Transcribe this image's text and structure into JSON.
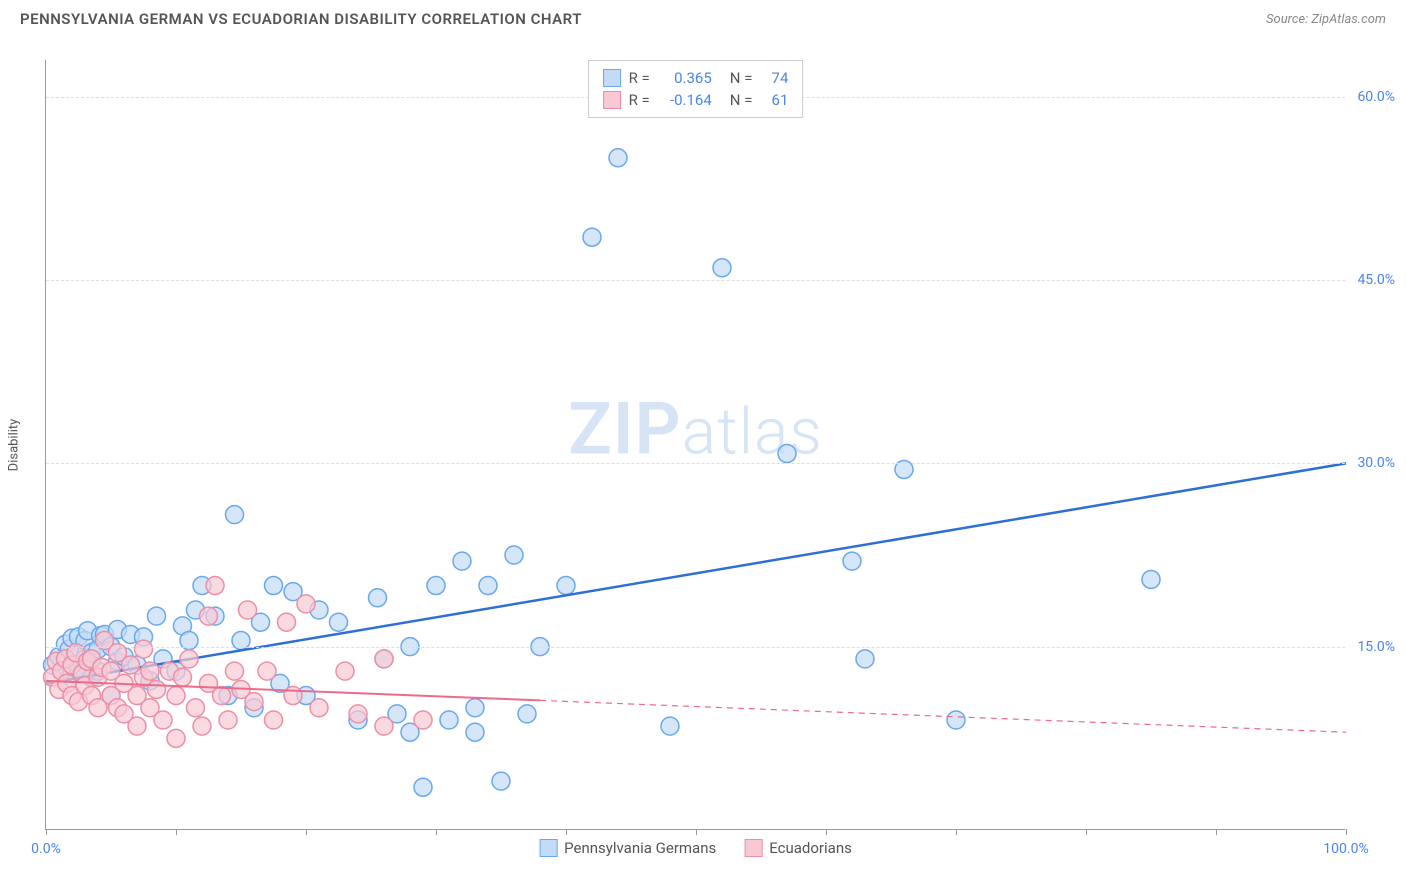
{
  "header": {
    "title": "PENNSYLVANIA GERMAN VS ECUADORIAN DISABILITY CORRELATION CHART",
    "source": "Source: ZipAtlas.com"
  },
  "watermark": {
    "zip": "ZIP",
    "atlas": "atlas"
  },
  "chart": {
    "type": "scatter",
    "y_axis_label": "Disability",
    "xlim": [
      0,
      100
    ],
    "ylim": [
      0,
      63
    ],
    "x_ticks": [
      0,
      10,
      20,
      30,
      40,
      50,
      60,
      70,
      80,
      90,
      100
    ],
    "x_tick_labels": {
      "0": "0.0%",
      "100": "100.0%"
    },
    "y_gridlines": [
      15,
      30,
      45,
      60
    ],
    "y_tick_labels": {
      "15": "15.0%",
      "30": "30.0%",
      "45": "45.0%",
      "60": "60.0%"
    },
    "background_color": "#ffffff",
    "grid_color": "#dddddd",
    "axis_color": "#999999",
    "tick_label_color": "#4a86e8",
    "marker_radius": 9,
    "marker_stroke_width": 1.5,
    "series": [
      {
        "name": "Pennsylvania Germans",
        "marker_fill": "#c3dbf7",
        "marker_stroke": "#6aa8ec",
        "marker_opacity": 0.7,
        "trend_color": "#2e6fd6",
        "trend_width": 2.5,
        "trend_solid_until_x": 100,
        "trend": {
          "y_at_x0": 12.0,
          "y_at_x100": 30.0
        },
        "R": "0.365",
        "N": "74",
        "points": [
          [
            0.5,
            13.5
          ],
          [
            1,
            14.2
          ],
          [
            1.2,
            13
          ],
          [
            1.5,
            15.2
          ],
          [
            1.8,
            14.8
          ],
          [
            2,
            12.8
          ],
          [
            2,
            15.7
          ],
          [
            2.5,
            13.2
          ],
          [
            2.5,
            15.8
          ],
          [
            3,
            14
          ],
          [
            3,
            15.5
          ],
          [
            3.2,
            16.3
          ],
          [
            3.5,
            12.5
          ],
          [
            3.5,
            14.5
          ],
          [
            4,
            14.8
          ],
          [
            4,
            13
          ],
          [
            4.2,
            15.9
          ],
          [
            4.5,
            16
          ],
          [
            5,
            11
          ],
          [
            5,
            15
          ],
          [
            5.5,
            13.8
          ],
          [
            5.5,
            16.4
          ],
          [
            6,
            14.2
          ],
          [
            6.5,
            16
          ],
          [
            7,
            13.5
          ],
          [
            7.5,
            15.8
          ],
          [
            8,
            12.2
          ],
          [
            8.5,
            17.5
          ],
          [
            9,
            14
          ],
          [
            10,
            13
          ],
          [
            10.5,
            16.7
          ],
          [
            11,
            15.5
          ],
          [
            11.5,
            18
          ],
          [
            12,
            20
          ],
          [
            13,
            17.5
          ],
          [
            14,
            11
          ],
          [
            14.5,
            25.8
          ],
          [
            15,
            15.5
          ],
          [
            16,
            10
          ],
          [
            16.5,
            17
          ],
          [
            17.5,
            20
          ],
          [
            18,
            12
          ],
          [
            19,
            19.5
          ],
          [
            20,
            11
          ],
          [
            21,
            18
          ],
          [
            22.5,
            17
          ],
          [
            24,
            9
          ],
          [
            25.5,
            19
          ],
          [
            26,
            14
          ],
          [
            27,
            9.5
          ],
          [
            28,
            8
          ],
          [
            28,
            15
          ],
          [
            29,
            3.5
          ],
          [
            30,
            20
          ],
          [
            31,
            9
          ],
          [
            32,
            22
          ],
          [
            33,
            10
          ],
          [
            33,
            8
          ],
          [
            34,
            20
          ],
          [
            35,
            4
          ],
          [
            36,
            22.5
          ],
          [
            37,
            9.5
          ],
          [
            38,
            15
          ],
          [
            40,
            20
          ],
          [
            42,
            48.5
          ],
          [
            44,
            55
          ],
          [
            48,
            8.5
          ],
          [
            52,
            46
          ],
          [
            57,
            30.8
          ],
          [
            62,
            22
          ],
          [
            63,
            14
          ],
          [
            66,
            29.5
          ],
          [
            70,
            9
          ],
          [
            85,
            20.5
          ]
        ]
      },
      {
        "name": "Ecuadorians",
        "marker_fill": "#f8c9d4",
        "marker_stroke": "#ec8fa6",
        "marker_opacity": 0.7,
        "trend_color": "#ec6a8a",
        "trend_width": 2,
        "trend_solid_until_x": 38,
        "trend": {
          "y_at_x0": 12.2,
          "y_at_x100": 8.0
        },
        "R": "-0.164",
        "N": "61",
        "points": [
          [
            0.5,
            12.5
          ],
          [
            0.8,
            13.8
          ],
          [
            1,
            11.5
          ],
          [
            1.2,
            13
          ],
          [
            1.5,
            14
          ],
          [
            1.6,
            12
          ],
          [
            2,
            11
          ],
          [
            2,
            13.5
          ],
          [
            2.3,
            14.5
          ],
          [
            2.5,
            10.5
          ],
          [
            2.8,
            12.8
          ],
          [
            3,
            11.8
          ],
          [
            3.2,
            13.8
          ],
          [
            3.5,
            11
          ],
          [
            3.5,
            14
          ],
          [
            4,
            12.5
          ],
          [
            4,
            10
          ],
          [
            4.3,
            13.3
          ],
          [
            4.5,
            15.5
          ],
          [
            5,
            11
          ],
          [
            5,
            13
          ],
          [
            5.5,
            14.5
          ],
          [
            5.5,
            10
          ],
          [
            6,
            12
          ],
          [
            6,
            9.5
          ],
          [
            6.5,
            13.5
          ],
          [
            7,
            11
          ],
          [
            7,
            8.5
          ],
          [
            7.5,
            12.5
          ],
          [
            7.5,
            14.8
          ],
          [
            8,
            10
          ],
          [
            8,
            13
          ],
          [
            8.5,
            11.5
          ],
          [
            9,
            9
          ],
          [
            9.5,
            13
          ],
          [
            10,
            11
          ],
          [
            10,
            7.5
          ],
          [
            10.5,
            12.5
          ],
          [
            11,
            14
          ],
          [
            11.5,
            10
          ],
          [
            12,
            8.5
          ],
          [
            12.5,
            12
          ],
          [
            12.5,
            17.5
          ],
          [
            13,
            20
          ],
          [
            13.5,
            11
          ],
          [
            14,
            9
          ],
          [
            14.5,
            13
          ],
          [
            15,
            11.5
          ],
          [
            15.5,
            18
          ],
          [
            16,
            10.5
          ],
          [
            17,
            13
          ],
          [
            17.5,
            9
          ],
          [
            18.5,
            17
          ],
          [
            19,
            11
          ],
          [
            20,
            18.5
          ],
          [
            21,
            10
          ],
          [
            23,
            13
          ],
          [
            24,
            9.5
          ],
          [
            26,
            14
          ],
          [
            26,
            8.5
          ],
          [
            29,
            9
          ]
        ]
      }
    ],
    "legend_bottom": [
      {
        "swatch_class": "swatch-blue",
        "label": "Pennsylvania Germans"
      },
      {
        "swatch_class": "swatch-pink",
        "label": "Ecuadorians"
      }
    ]
  }
}
